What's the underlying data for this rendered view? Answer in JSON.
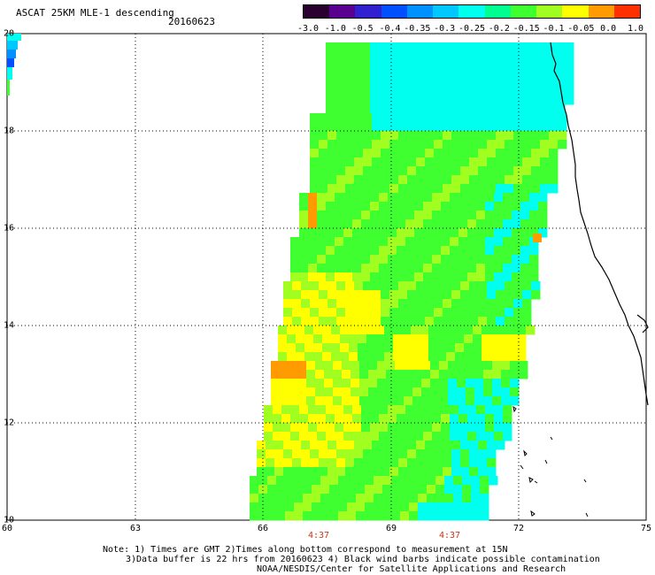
{
  "header": {
    "title": "ASCAT 25KM MLE-1 descending",
    "date": "20160623"
  },
  "colorbar": {
    "ticks": [
      "-3.0",
      "-1.0",
      "-0.5",
      "-0.4",
      "-0.35",
      "-0.3",
      "-0.25",
      "-0.2",
      "-0.15",
      "-0.1",
      "-0.05",
      "0.0",
      "1.0"
    ],
    "colors": [
      "#2a0030",
      "#5a0090",
      "#3020d0",
      "#0050ff",
      "#0090ff",
      "#00c8ff",
      "#00ffee",
      "#00ff90",
      "#40ff30",
      "#a0ff20",
      "#ffff00",
      "#ff9a00",
      "#ff3000"
    ]
  },
  "map": {
    "lon_ticks": [
      "60",
      "63",
      "66",
      "69",
      "72",
      "75"
    ],
    "lat_ticks": [
      "20",
      "18",
      "16",
      "14",
      "12",
      "10"
    ],
    "pass_times": [
      "4:37",
      "4:37"
    ]
  },
  "notes": {
    "line1": "Note: 1) Times are GMT 2)Times along bottom correspond to measurement at 15N",
    "line2": "3)Data buffer is 22 hrs from 20160623 4) Black wind barbs indicate possible contamination",
    "line3": "NOAA/NESDIS/Center for Satellite Applications and Research"
  },
  "legend_colors": {
    "cyan": "#00ffee",
    "green": "#40ff30",
    "yellow": "#ffff00",
    "orange": "#ff9a00",
    "light_green": "#a0ff20"
  }
}
